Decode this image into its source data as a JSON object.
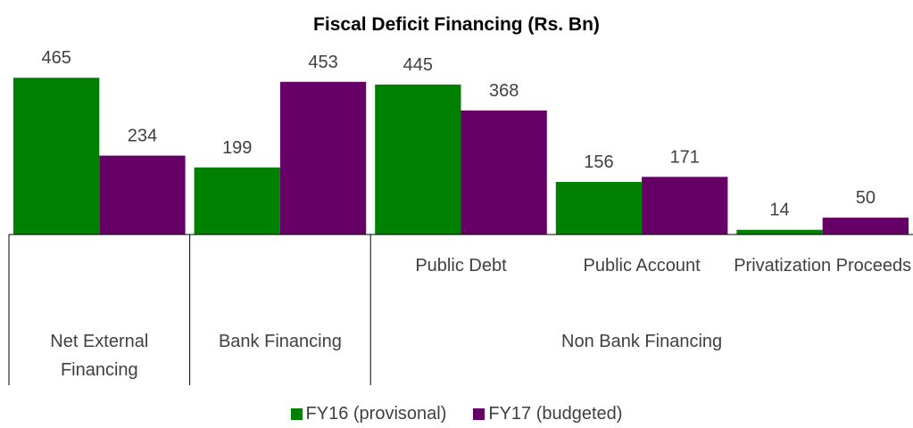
{
  "chart_data": {
    "type": "bar",
    "title": "Fiscal Deficit Financing (Rs. Bn)",
    "categories": [
      null,
      null,
      "Public Debt",
      "Public Account",
      "Privatization Proceeds"
    ],
    "groups": [
      {
        "name": "Net External Financing",
        "size": 1
      },
      {
        "name": "Bank Financing",
        "size": 1
      },
      {
        "name": "Non Bank Financing",
        "size": 3
      }
    ],
    "series": [
      {
        "name": "FY16 (provisonal)",
        "color": "#008000",
        "values": [
          465,
          199,
          445,
          156,
          14
        ]
      },
      {
        "name": "FY17 (budgeted)",
        "color": "#660066",
        "values": [
          234,
          453,
          368,
          171,
          50
        ]
      }
    ],
    "ylim": [
      0,
      500
    ]
  }
}
